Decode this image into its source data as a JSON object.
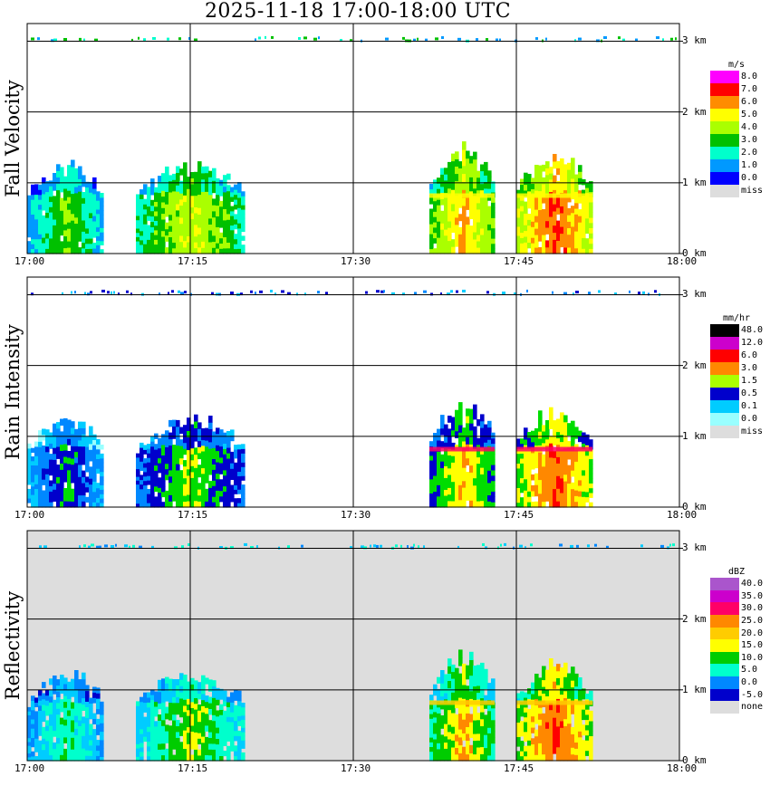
{
  "title": "2025-11-18   17:00-18:00 UTC",
  "x_ticks": [
    "17:00",
    "17:15",
    "17:30",
    "17:45",
    "18:00"
  ],
  "y_ticks": [
    "3 km",
    "2 km",
    "1 km",
    "0 km"
  ],
  "panels": [
    {
      "name": "Fall Velocity",
      "unit": "m/s",
      "legend": [
        "8.0",
        "7.0",
        "6.0",
        "5.0",
        "4.0",
        "3.0",
        "2.0",
        "1.0",
        "0.0",
        "miss"
      ],
      "colors": [
        "#ff00ff",
        "#ff0000",
        "#ff8c00",
        "#ffff00",
        "#aaff00",
        "#00c000",
        "#00ffcc",
        "#0099ff",
        "#0000ff",
        "#dddddd"
      ],
      "background": "#ffffff"
    },
    {
      "name": "Rain Intensity",
      "unit": "mm/hr",
      "legend": [
        "48.0",
        "12.0",
        "6.0",
        "3.0",
        "1.5",
        "0.5",
        "0.1",
        "0.0",
        "miss"
      ],
      "colors": [
        "#000000",
        "#880088",
        "#cc00cc",
        "#ff0088",
        "#ff0000",
        "#ff8800",
        "#ffff00",
        "#aaff00",
        "#00dd00",
        "#0000cc",
        "#0088ff",
        "#00ccff",
        "#99ffff",
        "#ffffff",
        "#dddddd"
      ],
      "background": "#ffffff"
    },
    {
      "name": "Reflectivity",
      "unit": "dBZ",
      "legend": [
        "40.0",
        "35.0",
        "30.0",
        "25.0",
        "20.0",
        "15.0",
        "10.0",
        "5.0",
        "0.0",
        "-5.0",
        "none"
      ],
      "colors": [
        "#aa55cc",
        "#cc00cc",
        "#ff0066",
        "#ff0000",
        "#ff8800",
        "#ffcc00",
        "#ffff00",
        "#00cc00",
        "#00ffcc",
        "#00ccff",
        "#0088ff",
        "#0000cc",
        "#dddddd"
      ],
      "background": "#dddddd"
    }
  ],
  "chart_data": [
    {
      "type": "heatmap",
      "title": "Fall Velocity",
      "unit": "m/s",
      "x_range": [
        "17:00",
        "18:00"
      ],
      "y_range_km": [
        0,
        3.2
      ],
      "grid": true,
      "echo_segments": [
        {
          "start": "17:00",
          "end": "17:07",
          "top_km": 1.1,
          "value": 2.0
        },
        {
          "start": "17:10",
          "end": "17:20",
          "top_km": 1.1,
          "value": 3.0
        },
        {
          "start": "17:37",
          "end": "17:43",
          "top_km": 1.3,
          "value": 4.0
        },
        {
          "start": "17:45",
          "end": "17:52",
          "top_km": 1.2,
          "value": 5.5
        }
      ]
    },
    {
      "type": "heatmap",
      "title": "Rain Intensity",
      "unit": "mm/hr",
      "x_range": [
        "17:00",
        "18:00"
      ],
      "y_range_km": [
        0,
        3.2
      ],
      "grid": true,
      "echo_segments": [
        {
          "start": "17:00",
          "end": "17:07",
          "top_km": 1.1,
          "value": 0.1
        },
        {
          "start": "17:10",
          "end": "17:20",
          "top_km": 1.1,
          "value": 0.5
        },
        {
          "start": "17:37",
          "end": "17:43",
          "top_km": 1.3,
          "value": 1.5
        },
        {
          "start": "17:45",
          "end": "17:52",
          "top_km": 1.2,
          "value": 6.0
        }
      ]
    },
    {
      "type": "heatmap",
      "title": "Reflectivity",
      "unit": "dBZ",
      "x_range": [
        "17:00",
        "18:00"
      ],
      "y_range_km": [
        0,
        3.2
      ],
      "grid": true,
      "echo_segments": [
        {
          "start": "17:00",
          "end": "17:07",
          "top_km": 1.1,
          "value": 5.0
        },
        {
          "start": "17:10",
          "end": "17:20",
          "top_km": 1.1,
          "value": 10.0
        },
        {
          "start": "17:37",
          "end": "17:43",
          "top_km": 1.3,
          "value": 15.0
        },
        {
          "start": "17:45",
          "end": "17:52",
          "top_km": 1.2,
          "value": 25.0
        }
      ]
    }
  ]
}
